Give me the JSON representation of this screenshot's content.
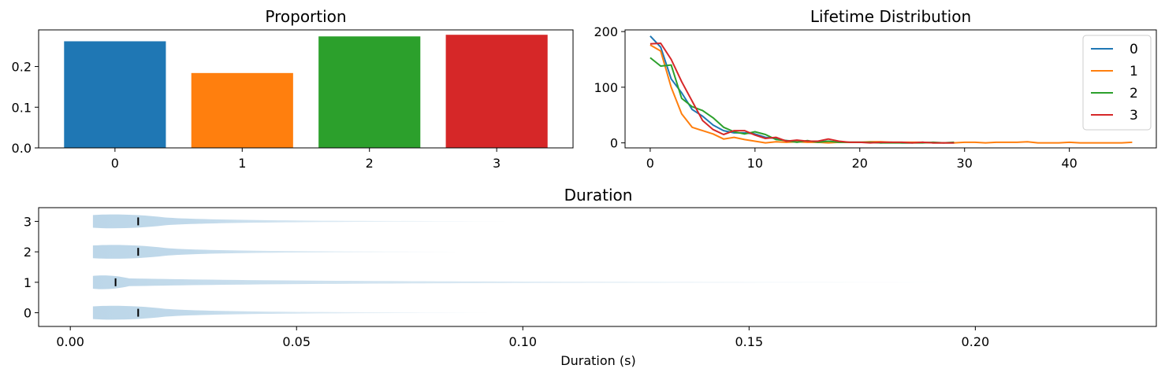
{
  "chart_data": [
    {
      "type": "bar",
      "title": "Proportion",
      "categories": [
        "0",
        "1",
        "2",
        "3"
      ],
      "values": [
        0.262,
        0.184,
        0.274,
        0.278
      ],
      "colors": [
        "#1f77b4",
        "#ff7f0e",
        "#2ca02c",
        "#d62728"
      ],
      "ylim": [
        0,
        0.29
      ],
      "yticks": [
        0.0,
        0.1,
        0.2
      ],
      "ytick_labels": [
        "0.0",
        "0.1",
        "0.2"
      ],
      "xtick_labels": [
        "0",
        "1",
        "2",
        "3"
      ]
    },
    {
      "type": "line",
      "title": "Lifetime Distribution",
      "xlim": [
        -2.4,
        48.3
      ],
      "ylim": [
        -9,
        203
      ],
      "xticks": [
        0,
        10,
        20,
        30,
        40
      ],
      "xtick_labels": [
        "0",
        "10",
        "20",
        "30",
        "40"
      ],
      "yticks": [
        0,
        100,
        200
      ],
      "ytick_labels": [
        "0",
        "100",
        "200"
      ],
      "legend": "top-right",
      "series": [
        {
          "name": "0",
          "color": "#1f77b4",
          "x": [
            0,
            1,
            2,
            3,
            4,
            5,
            6,
            7,
            8,
            9,
            10,
            11,
            12,
            13,
            14,
            15,
            16,
            17,
            18,
            19,
            20,
            21,
            22,
            23,
            24,
            25,
            26,
            27,
            28,
            29
          ],
          "y": [
            192,
            172,
            115,
            90,
            60,
            48,
            32,
            22,
            18,
            18,
            16,
            10,
            8,
            4,
            3,
            2,
            2,
            3,
            1,
            1,
            1,
            1,
            0,
            1,
            0,
            0,
            1,
            0,
            0,
            0
          ]
        },
        {
          "name": "1",
          "color": "#ff7f0e",
          "x": [
            0,
            1,
            2,
            3,
            4,
            5,
            6,
            7,
            8,
            9,
            10,
            11,
            12,
            13,
            14,
            15,
            16,
            17,
            18,
            19,
            20,
            21,
            22,
            23,
            24,
            25,
            26,
            27,
            28,
            29,
            30,
            31,
            32,
            33,
            34,
            35,
            36,
            37,
            38,
            39,
            40,
            41,
            42,
            43,
            44,
            45,
            46
          ],
          "y": [
            176,
            165,
            100,
            52,
            28,
            22,
            16,
            7,
            10,
            6,
            3,
            0,
            2,
            1,
            2,
            1,
            1,
            0,
            1,
            1,
            1,
            2,
            2,
            1,
            1,
            1,
            1,
            0,
            0,
            0,
            1,
            1,
            0,
            1,
            1,
            1,
            2,
            0,
            0,
            0,
            1,
            0,
            0,
            0,
            0,
            0,
            1
          ]
        },
        {
          "name": "2",
          "color": "#2ca02c",
          "x": [
            0,
            1,
            2,
            3,
            4,
            5,
            6,
            7,
            8,
            9,
            10,
            11,
            12,
            13,
            14,
            15,
            16,
            17,
            18,
            19,
            20,
            21,
            22,
            23,
            24,
            25,
            26,
            27,
            28,
            29
          ],
          "y": [
            153,
            138,
            140,
            80,
            65,
            58,
            45,
            28,
            20,
            16,
            20,
            15,
            6,
            4,
            1,
            4,
            1,
            3,
            1,
            1,
            1,
            1,
            0,
            0,
            0,
            0,
            0,
            1,
            0,
            1
          ]
        },
        {
          "name": "3",
          "color": "#d62728",
          "x": [
            0,
            1,
            2,
            3,
            4,
            5,
            6,
            7,
            8,
            9,
            10,
            11,
            12,
            13,
            14,
            15,
            16,
            17,
            18,
            19,
            20,
            21,
            22,
            23,
            24,
            25,
            26,
            27,
            28,
            29
          ],
          "y": [
            178,
            179,
            150,
            110,
            75,
            40,
            24,
            15,
            22,
            22,
            14,
            8,
            10,
            3,
            5,
            3,
            3,
            7,
            3,
            1,
            1,
            0,
            1,
            1,
            1,
            0,
            1,
            0,
            0,
            0
          ]
        }
      ]
    },
    {
      "type": "violin",
      "title": "Duration",
      "xlabel": "Duration (s)",
      "xlim": [
        -0.007,
        0.24
      ],
      "xticks": [
        0.0,
        0.05,
        0.1,
        0.15,
        0.2
      ],
      "xtick_labels": [
        "0.00",
        "0.05",
        "0.10",
        "0.15",
        "0.20"
      ],
      "categories": [
        "0",
        "1",
        "2",
        "3"
      ],
      "ylim": [
        -0.45,
        3.45
      ],
      "color": "#1f77b4",
      "series": [
        {
          "name": "0",
          "min": 0.005,
          "max": 0.092,
          "median": 0.015
        },
        {
          "name": "1",
          "min": 0.005,
          "max": 0.192,
          "median": 0.01
        },
        {
          "name": "2",
          "min": 0.005,
          "max": 0.085,
          "median": 0.015
        },
        {
          "name": "3",
          "min": 0.005,
          "max": 0.096,
          "median": 0.015
        }
      ]
    }
  ]
}
